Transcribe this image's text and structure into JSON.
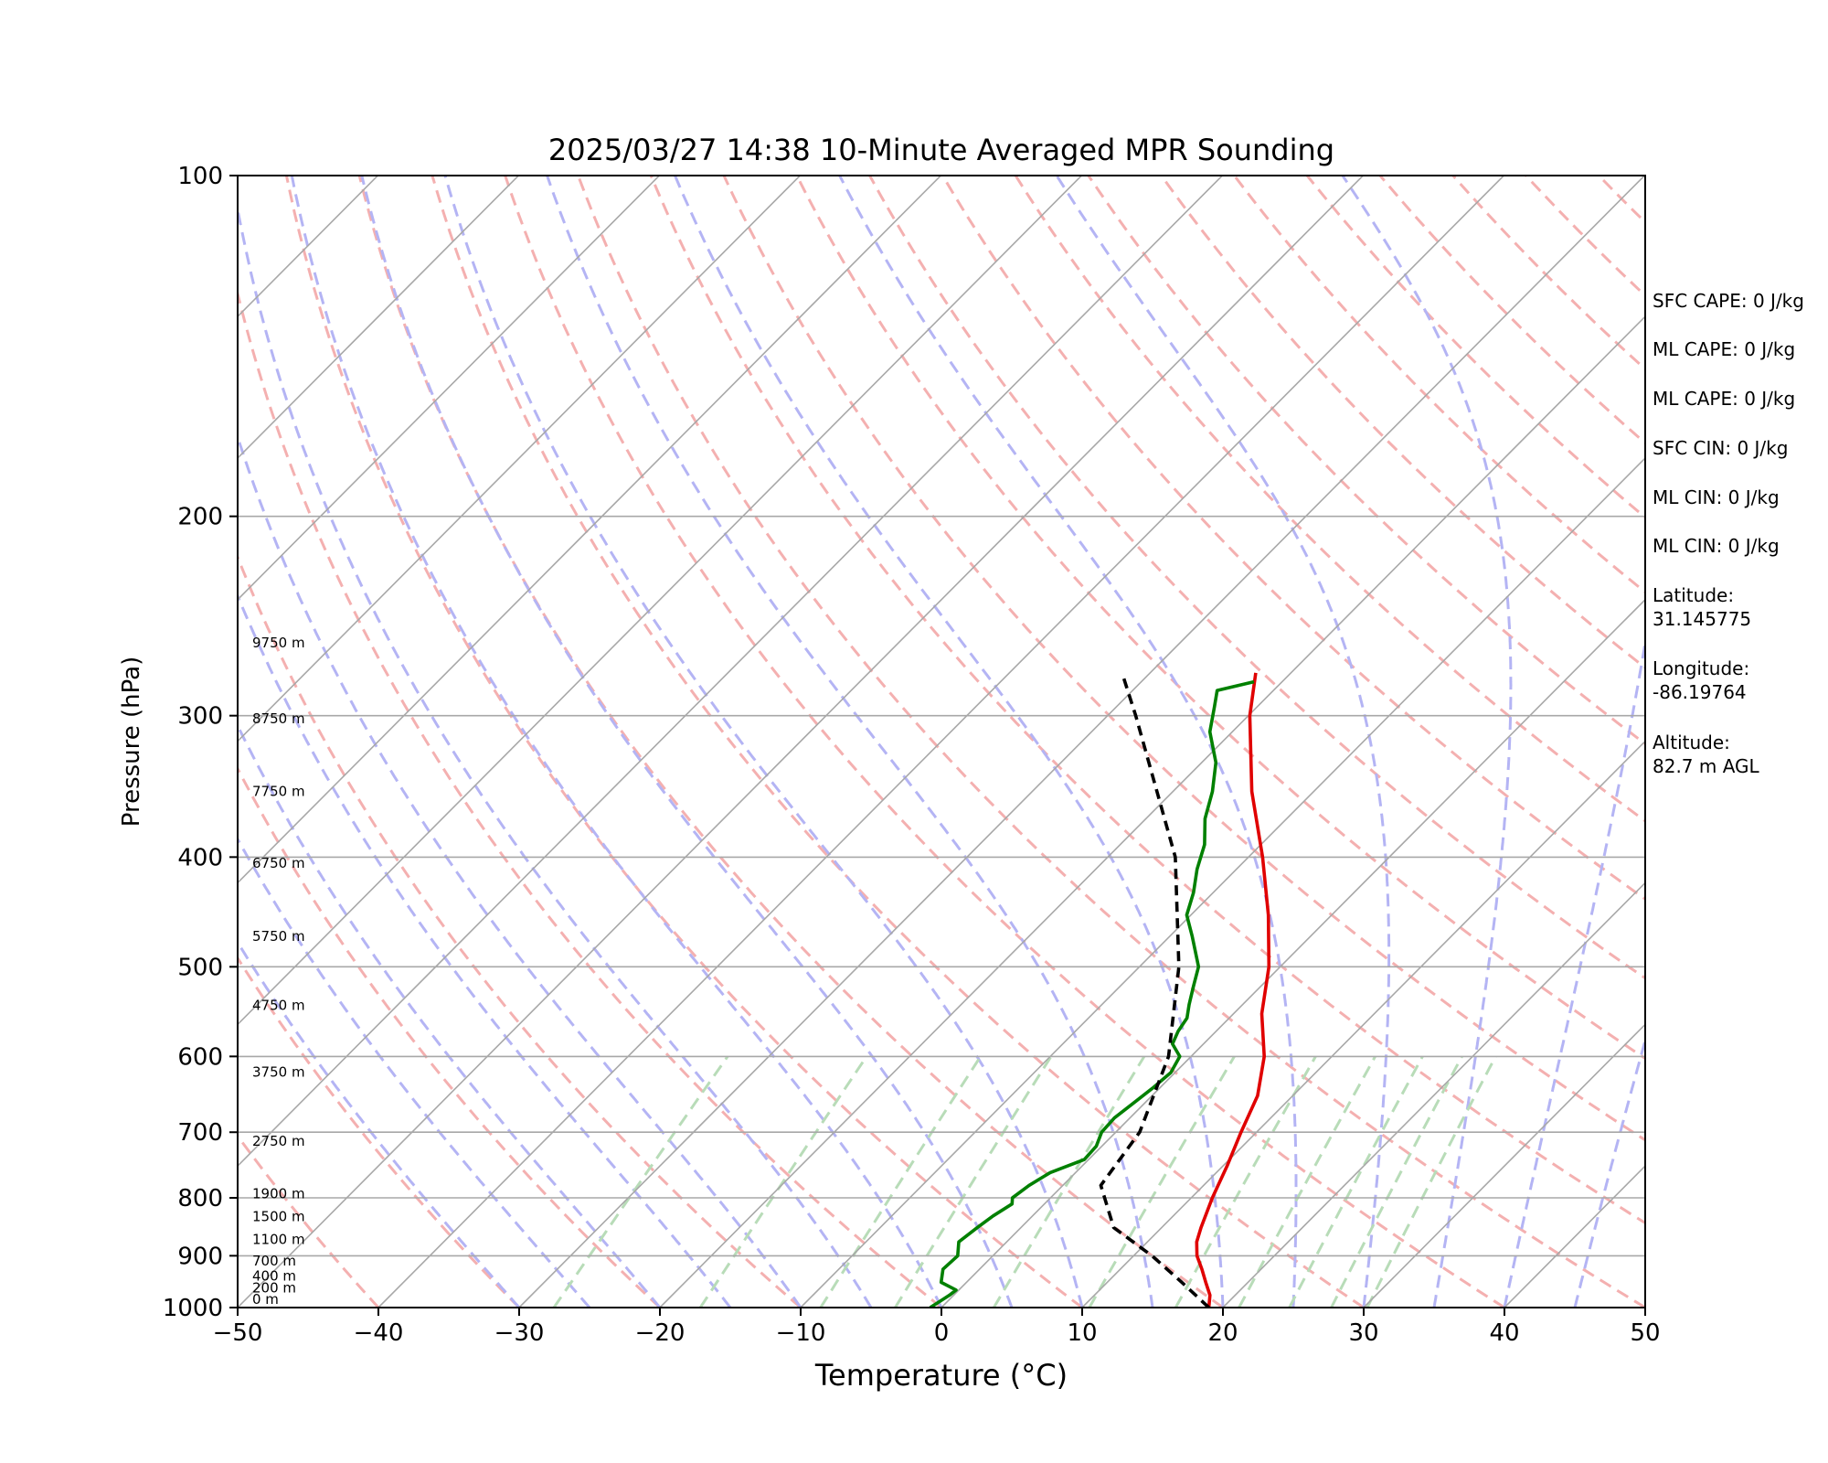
{
  "chart_data": {
    "type": "line",
    "title": "2025/03/27 14:38 10-Minute Averaged MPR Sounding",
    "xlabel": "Temperature (°C)",
    "ylabel": "Pressure (hPa)",
    "xlim": [
      -50,
      50
    ],
    "ylim": [
      1000,
      100
    ],
    "y_scale": "log",
    "x_ticks": [
      -50,
      -40,
      -30,
      -20,
      -10,
      0,
      10,
      20,
      30,
      40,
      50
    ],
    "x_tick_labels": [
      "−50",
      "−40",
      "−30",
      "−20",
      "−10",
      "0",
      "10",
      "20",
      "30",
      "40",
      "50"
    ],
    "y_ticks": [
      1000,
      900,
      800,
      700,
      600,
      500,
      400,
      300,
      200,
      100
    ],
    "y_tick_labels": [
      "1000",
      "900",
      "800",
      "700",
      "600",
      "500",
      "400",
      "300",
      "200",
      "100"
    ],
    "grid": true,
    "series": [
      {
        "kind": "temperature",
        "color": "#e00000",
        "points": [
          [
            1000,
            19.0
          ],
          [
            975,
            18.2
          ],
          [
            950,
            17.0
          ],
          [
            925,
            15.8
          ],
          [
            900,
            14.5
          ],
          [
            875,
            13.5
          ],
          [
            850,
            12.8
          ],
          [
            800,
            11.5
          ],
          [
            750,
            10.3
          ],
          [
            700,
            8.9
          ],
          [
            650,
            7.5
          ],
          [
            600,
            5.2
          ],
          [
            550,
            2.0
          ],
          [
            500,
            -0.8
          ],
          [
            450,
            -4.5
          ],
          [
            400,
            -9.0
          ],
          [
            350,
            -14.4
          ],
          [
            300,
            -19.9
          ],
          [
            275,
            -22.5
          ]
        ]
      },
      {
        "kind": "dewpoint",
        "color": "#008000",
        "points": [
          [
            1000,
            -0.8
          ],
          [
            990,
            -0.6
          ],
          [
            985,
            -0.5
          ],
          [
            975,
            -0.3
          ],
          [
            965,
            -0.2
          ],
          [
            950,
            -1.8
          ],
          [
            925,
            -2.6
          ],
          [
            900,
            -2.5
          ],
          [
            875,
            -3.4
          ],
          [
            850,
            -3.1
          ],
          [
            830,
            -2.8
          ],
          [
            810,
            -2.3
          ],
          [
            800,
            -2.7
          ],
          [
            780,
            -2.4
          ],
          [
            760,
            -1.8
          ],
          [
            740,
            -0.3
          ],
          [
            720,
            -0.4
          ],
          [
            700,
            -1.0
          ],
          [
            680,
            -1.1
          ],
          [
            660,
            -0.8
          ],
          [
            640,
            -0.5
          ],
          [
            620,
            -0.3
          ],
          [
            600,
            -0.8
          ],
          [
            585,
            -2.2
          ],
          [
            570,
            -2.7
          ],
          [
            555,
            -3.0
          ],
          [
            540,
            -3.8
          ],
          [
            520,
            -4.8
          ],
          [
            500,
            -5.8
          ],
          [
            470,
            -8.4
          ],
          [
            450,
            -10.3
          ],
          [
            430,
            -11.4
          ],
          [
            410,
            -12.8
          ],
          [
            390,
            -14.0
          ],
          [
            370,
            -15.8
          ],
          [
            350,
            -17.2
          ],
          [
            330,
            -19.0
          ],
          [
            310,
            -21.6
          ],
          [
            295,
            -23.0
          ],
          [
            285,
            -24.0
          ],
          [
            280,
            -22.0
          ]
        ]
      },
      {
        "kind": "parcel",
        "color": "#000000",
        "points": [
          [
            1000,
            19.0
          ],
          [
            950,
            15.3
          ],
          [
            900,
            11.3
          ],
          [
            850,
            6.6
          ],
          [
            780,
            2.7
          ],
          [
            700,
            1.7
          ],
          [
            600,
            -1.6
          ],
          [
            500,
            -7.2
          ],
          [
            400,
            -15.2
          ],
          [
            300,
            -28.0
          ],
          [
            278,
            -31.5
          ]
        ]
      }
    ],
    "height_labels": [
      {
        "p": 1000,
        "text": "0 m"
      },
      {
        "p": 977,
        "text": "200 m"
      },
      {
        "p": 954,
        "text": "400 m"
      },
      {
        "p": 925,
        "text": "700 m"
      },
      {
        "p": 885,
        "text": "1100 m"
      },
      {
        "p": 845,
        "text": "1500 m"
      },
      {
        "p": 807,
        "text": "1900 m"
      },
      {
        "p": 725,
        "text": "2750 m"
      },
      {
        "p": 630,
        "text": "3750 m"
      },
      {
        "p": 550,
        "text": "4750 m"
      },
      {
        "p": 478,
        "text": "5750 m"
      },
      {
        "p": 412,
        "text": "6750 m"
      },
      {
        "p": 356,
        "text": "7750 m"
      },
      {
        "p": 307,
        "text": "8750 m"
      },
      {
        "p": 263,
        "text": "9750 m"
      }
    ],
    "background_lines": {
      "isotherm_color": "#a8a8a8",
      "dry_adiabat_color": "#f4b0b0",
      "moist_adiabat_color": "#b4b4f4",
      "mixing_ratio_color": "#b8dcb8"
    }
  },
  "side_panel": {
    "items": [
      "SFC CAPE: 0 J/kg",
      "ML CAPE: 0 J/kg",
      "ML CAPE: 0 J/kg",
      "SFC CIN: 0 J/kg",
      "ML CIN: 0 J/kg",
      "ML CIN: 0 J/kg",
      "Latitude:\n31.145775",
      "Longitude:\n-86.19764",
      "Altitude:\n82.7 m AGL"
    ]
  }
}
